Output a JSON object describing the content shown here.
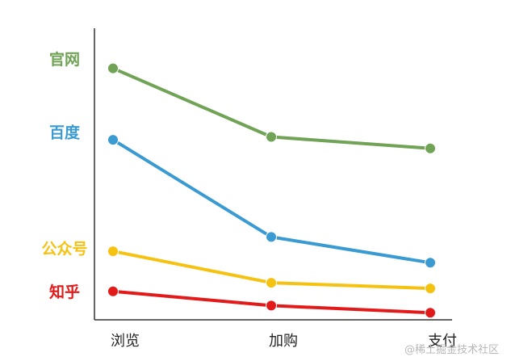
{
  "chart_data": {
    "type": "line",
    "categories": [
      "浏览",
      "加购",
      "支付"
    ],
    "series": [
      {
        "name": "官网",
        "color": "#70a356",
        "values": [
          86,
          62,
          58
        ]
      },
      {
        "name": "百度",
        "color": "#3a9ad2",
        "values": [
          61,
          27,
          18
        ]
      },
      {
        "name": "公众号",
        "color": "#f5c211",
        "values": [
          22,
          11,
          9
        ]
      },
      {
        "name": "知乎",
        "color": "#e21a1a",
        "values": [
          8,
          3,
          0.5
        ]
      }
    ],
    "ylim": [
      0,
      100
    ],
    "xlabel": "",
    "ylabel": "",
    "grid": false,
    "legend_position": "left, beside y-axis"
  },
  "watermark": "@稀土掘金技术社区"
}
